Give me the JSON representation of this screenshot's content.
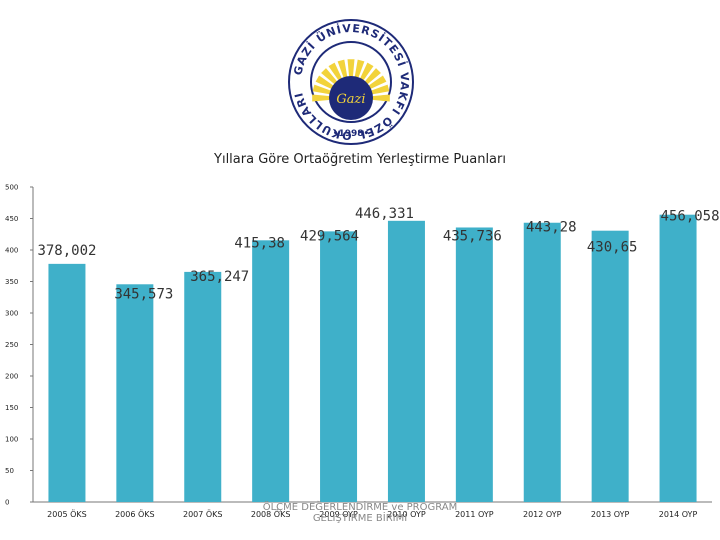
{
  "logo": {
    "ring_text": "GAZİ ÜNİVERSİTESİ VAKFI ÖZEL OKULLARI",
    "script_text": "Gazi",
    "year_text": "•1998•",
    "colors": {
      "navy": "#1e2a78",
      "gold": "#f2d33b"
    }
  },
  "footer": {
    "line1": "ÖLÇME DEĞERLENDİRME ve PROGRAM",
    "line2": "GELİŞTİRME BİRİMİ"
  },
  "chart_data": {
    "type": "bar",
    "title": "Yıllara Göre Ortaöğretim Yerleştirme Puanları",
    "categories": [
      "2005 ÖKS",
      "2006 ÖKS",
      "2007 ÖKS",
      "2008 ÖKS",
      "2009 OYP",
      "2010 OYP",
      "2011 OYP",
      "2012 OYP",
      "2013 OYP",
      "2014 OYP"
    ],
    "values": [
      378.002,
      345.573,
      365.247,
      415.38,
      429.564,
      446.331,
      435.736,
      443.28,
      430.65,
      456.058
    ],
    "value_labels": [
      "378,002",
      "345,573",
      "365,247",
      "415,38",
      "429,564",
      "446,331",
      "435,736",
      "443,28",
      "430,65",
      "456,058"
    ],
    "yticks": [
      "0",
      "50",
      "100",
      "150",
      "200",
      "250",
      "300",
      "350",
      "400",
      "450",
      "500"
    ],
    "ylim": [
      0,
      500
    ],
    "grid": false,
    "legend": "none",
    "colors": {
      "bar": "#3fb0c9",
      "axis": "#777777"
    }
  }
}
